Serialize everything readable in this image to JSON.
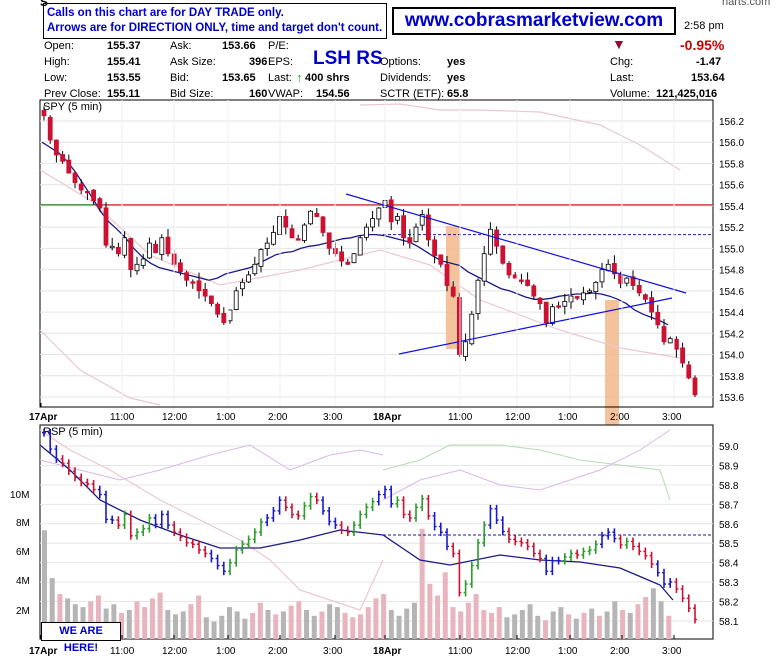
{
  "notice": {
    "line1": "Calls on this chart are for DAY TRADE only.",
    "line2": "Arrows are for DIRECTION ONLY, time and target don't count."
  },
  "website": "www.cobrasmarketview.com",
  "ticker_label": "LSH RS",
  "quote": {
    "open_label": "Open:",
    "open": "155.37",
    "high_label": "High:",
    "high": "155.41",
    "low_label": "Low:",
    "low": "153.55",
    "prev_close_label": "Prev Close:",
    "prev_close": "155.11",
    "ask_label": "Ask:",
    "ask": "153.66",
    "ask_size_label": "Ask Size:",
    "ask_size": "396",
    "bid_label": "Bid:",
    "bid": "153.65",
    "bid_size_label": "Bid Size:",
    "bid_size": "160",
    "pe_label": "P/E:",
    "eps_label": "EPS:",
    "last_trade_label": "Last:",
    "last_trade": "400 shrs",
    "vwap_label": "VWAP:",
    "vwap": "154.56",
    "options_label": "Options:",
    "options": "yes",
    "dividends_label": "Dividends:",
    "dividends": "yes",
    "sctr_label": "SCTR (ETF):",
    "sctr": "65.8",
    "time": "2:58 pm",
    "pct_change": "-0.95%",
    "chg_label": "Chg:",
    "chg": "-1.47",
    "last_label": "Last:",
    "last": "153.64",
    "volume_label": "Volume:",
    "volume": "121,425,016",
    "source_fragment": "harts.com",
    "corner_fragment": "S"
  },
  "annotation": {
    "we_are_here": "WE ARE HERE!"
  },
  "colors": {
    "up": "#2a9d2a",
    "down": "#cc1133",
    "blue_candle": "#1a1acc",
    "trend": "#1010dd",
    "ma": "#1a1a88",
    "highlight": "#f3b98a",
    "resistance": "#cc2222"
  },
  "chart_data": [
    {
      "type": "candlestick",
      "title": "SPY (5 min)",
      "ylim": [
        153.5,
        156.3
      ],
      "y_ticks": [
        "156.2",
        "156.0",
        "155.8",
        "155.6",
        "155.4",
        "155.2",
        "155.0",
        "154.8",
        "154.6",
        "154.4",
        "154.2",
        "154.0",
        "153.8",
        "153.6"
      ],
      "x_ticks": [
        "17Apr",
        "11:00",
        "12:00",
        "1:00",
        "2:00",
        "3:00",
        "18Apr",
        "11:00",
        "12:00",
        "1:00",
        "2:00",
        "3:00"
      ],
      "close": [
        156.25,
        156.02,
        155.88,
        155.82,
        155.71,
        155.62,
        155.55,
        155.53,
        155.45,
        155.38,
        155.03,
        155.02,
        154.95,
        155.1,
        154.8,
        154.85,
        154.9,
        155.05,
        154.96,
        155.1,
        154.95,
        154.85,
        154.78,
        154.7,
        154.68,
        154.6,
        154.55,
        154.48,
        154.38,
        154.3,
        154.42,
        154.6,
        154.68,
        154.75,
        154.85,
        154.99,
        155.05,
        155.15,
        155.3,
        155.2,
        155.1,
        155.08,
        155.22,
        155.35,
        155.3,
        155.15,
        155.0,
        154.95,
        154.88,
        154.85,
        154.95,
        155.1,
        155.2,
        155.28,
        155.38,
        155.45,
        155.25,
        155.3,
        155.1,
        155.05,
        155.2,
        155.32,
        155.08,
        154.93,
        154.85,
        154.65,
        154.55,
        154.0,
        154.12,
        154.38,
        154.7,
        154.95,
        155.18,
        155.02,
        154.86,
        154.75,
        154.72,
        154.7,
        154.65,
        154.55,
        154.48,
        154.3,
        154.45,
        154.45,
        154.5,
        154.55,
        154.53,
        154.58,
        154.6,
        154.68,
        154.8,
        154.85,
        154.76,
        154.67,
        154.72,
        154.65,
        154.58,
        154.52,
        154.4,
        154.28,
        154.12,
        154.15,
        154.05,
        153.92,
        153.78,
        153.62
      ],
      "moving_average": [
        156.0,
        155.95,
        155.9,
        155.82,
        155.72,
        155.6,
        155.48,
        155.35,
        155.25,
        155.18,
        155.1,
        155.0,
        154.92,
        154.86,
        154.82,
        154.8,
        154.78,
        154.76,
        154.74,
        154.72,
        154.7,
        154.72,
        154.76,
        154.78,
        154.8,
        154.82,
        154.86,
        154.9,
        154.94,
        154.96,
        154.97,
        155.0,
        155.02,
        155.03,
        155.05,
        155.07,
        155.09,
        155.1,
        155.12,
        155.13,
        155.13,
        155.12,
        155.1,
        155.08,
        155.06,
        155.02,
        154.97,
        154.92,
        154.88,
        154.86,
        154.84,
        154.78,
        154.74,
        154.7,
        154.66,
        154.62,
        154.6,
        154.57,
        154.54,
        154.52,
        154.52,
        154.53,
        154.55,
        154.56,
        154.57,
        154.57,
        154.58,
        154.57,
        154.55,
        154.52,
        154.48,
        154.42,
        154.38,
        154.35,
        154.32,
        154.28
      ],
      "horizontal_lines": [
        155.41,
        155.13
      ],
      "trendlines": [
        {
          "name": "upper",
          "from": [
            "3:00 17Apr",
            155.5
          ],
          "to": [
            "3:00 18Apr",
            154.6
          ]
        },
        {
          "name": "lower",
          "from": [
            "10:00 18Apr",
            154.08
          ],
          "to": [
            "3:00 18Apr",
            154.5
          ]
        }
      ]
    },
    {
      "type": "candlestick-volume",
      "title": "RSP (5 min)",
      "ylim": [
        58.05,
        59.1
      ],
      "y_ticks": [
        "59.0",
        "58.9",
        "58.8",
        "58.7",
        "58.6",
        "58.5",
        "58.4",
        "58.3",
        "58.2",
        "58.1"
      ],
      "volume_ticks": [
        "10M",
        "8M",
        "6M",
        "4M",
        "2M"
      ],
      "x_ticks": [
        "17Apr",
        "11:00",
        "12:00",
        "1:00",
        "2:00",
        "3:00",
        "18Apr",
        "11:00",
        "12:00",
        "1:00",
        "2:00",
        "3:00"
      ],
      "volume_millions": [
        7.5,
        4.2,
        3.1,
        2.8,
        2.4,
        2.2,
        2.6,
        3.0,
        2.1,
        2.4,
        1.8,
        2.0,
        2.6,
        2.2,
        2.8,
        3.2,
        2.0,
        1.7,
        1.9,
        2.4,
        3.0,
        1.5,
        1.2,
        1.6,
        2.2,
        1.9,
        1.4,
        1.8,
        2.5,
        2.0,
        1.7,
        1.9,
        2.3,
        2.6,
        2.0,
        1.6,
        1.9,
        2.4,
        2.2,
        1.8,
        1.5,
        1.7,
        2.2,
        2.8,
        3.1,
        2.0,
        1.6,
        2.1,
        2.5,
        7.6,
        3.8,
        3.0,
        4.6,
        2.2,
        1.9,
        2.5,
        3.1,
        2.0,
        1.8,
        2.2,
        1.5,
        1.7,
        2.0,
        2.4,
        1.6,
        1.3,
        1.9,
        2.2,
        1.7,
        1.4,
        1.8,
        2.1,
        1.6,
        1.9,
        2.6,
        2.0,
        1.8,
        2.4,
        2.9,
        3.5,
        2.6,
        1.6
      ]
    }
  ]
}
